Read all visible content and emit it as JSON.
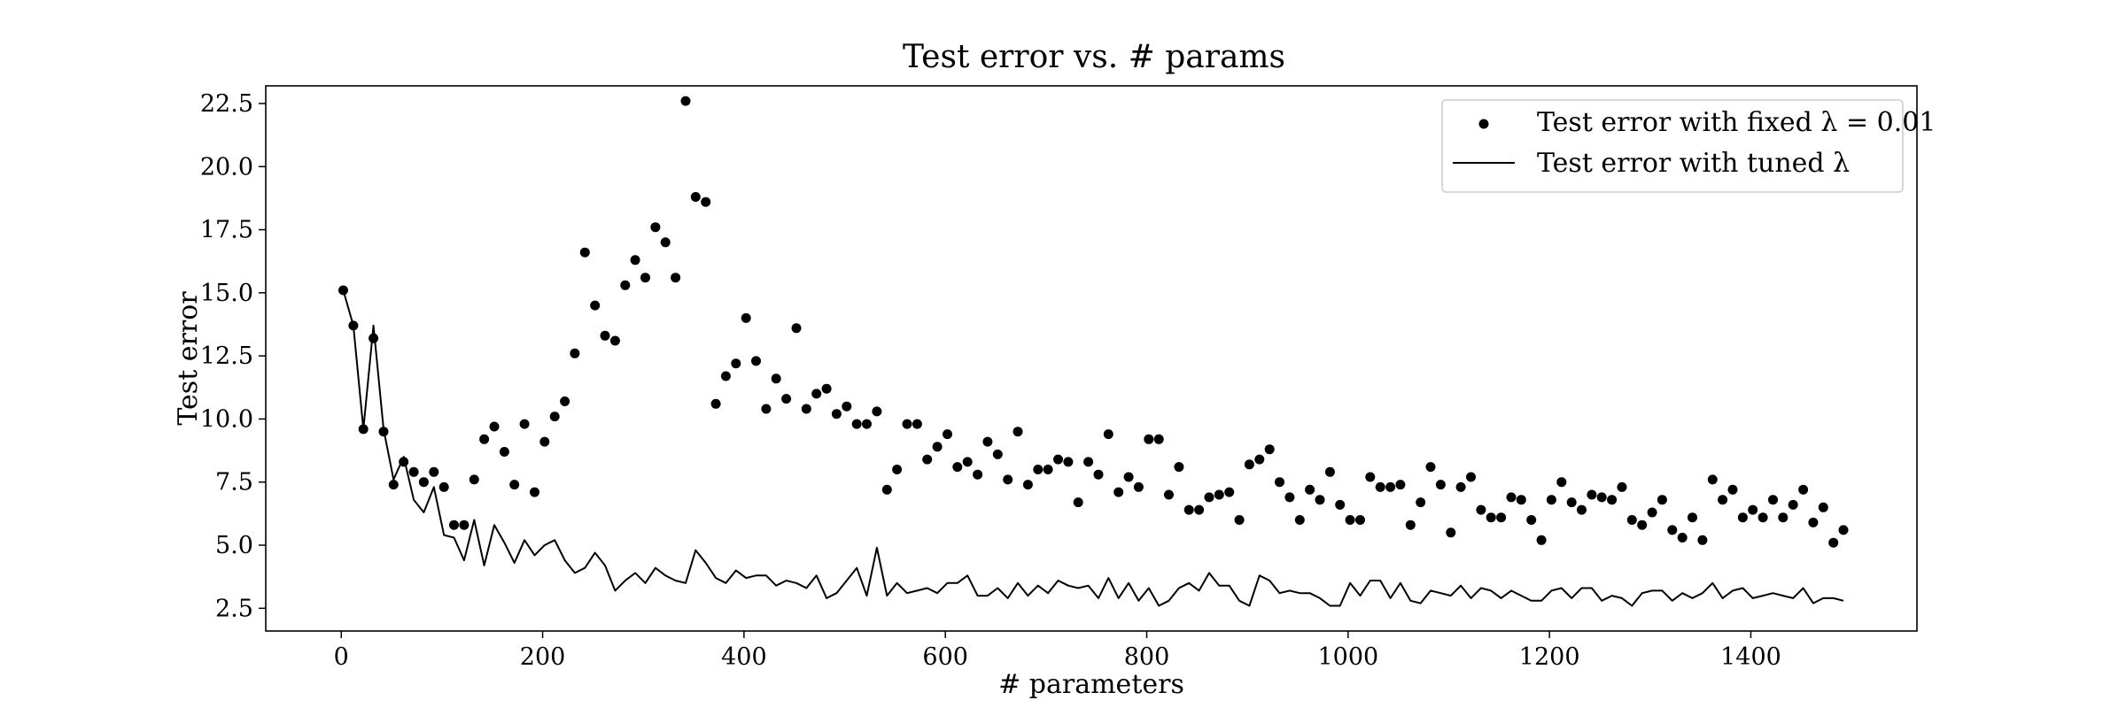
{
  "chart_data": {
    "type": "scatter",
    "title": "Test error vs. # params",
    "xlabel": "# parameters",
    "ylabel": "Test error",
    "xlim": [
      -75,
      1565
    ],
    "ylim": [
      1.6,
      23.2
    ],
    "xticks": [
      0,
      200,
      400,
      600,
      800,
      1000,
      1200,
      1400
    ],
    "xtick_labels": [
      "0",
      "200",
      "400",
      "600",
      "800",
      "1000",
      "1200",
      "1400"
    ],
    "yticks": [
      2.5,
      5.0,
      7.5,
      10.0,
      12.5,
      15.0,
      17.5,
      20.0,
      22.5
    ],
    "ytick_labels": [
      "2.5",
      "5.0",
      "7.5",
      "10.0",
      "12.5",
      "15.0",
      "17.5",
      "20.0",
      "22.5"
    ],
    "grid": false,
    "legend_position": "top-right",
    "x": [
      2,
      12,
      22,
      32,
      42,
      52,
      62,
      72,
      82,
      92,
      102,
      112,
      122,
      132,
      142,
      152,
      162,
      172,
      182,
      192,
      202,
      212,
      222,
      232,
      242,
      252,
      262,
      272,
      282,
      292,
      302,
      312,
      322,
      332,
      342,
      352,
      362,
      372,
      382,
      392,
      402,
      412,
      422,
      432,
      442,
      452,
      462,
      472,
      482,
      492,
      502,
      512,
      522,
      532,
      542,
      552,
      562,
      572,
      582,
      592,
      602,
      612,
      622,
      632,
      642,
      652,
      662,
      672,
      682,
      692,
      702,
      712,
      722,
      732,
      742,
      752,
      762,
      772,
      782,
      792,
      802,
      812,
      822,
      832,
      842,
      852,
      862,
      872,
      882,
      892,
      902,
      912,
      922,
      932,
      942,
      952,
      962,
      972,
      982,
      992,
      1002,
      1012,
      1022,
      1032,
      1042,
      1052,
      1062,
      1072,
      1082,
      1092,
      1102,
      1112,
      1122,
      1132,
      1142,
      1152,
      1162,
      1172,
      1182,
      1192,
      1202,
      1212,
      1222,
      1232,
      1242,
      1252,
      1262,
      1272,
      1282,
      1292,
      1302,
      1312,
      1322,
      1332,
      1342,
      1352,
      1362,
      1372,
      1382,
      1392,
      1402,
      1412,
      1422,
      1432,
      1442,
      1452,
      1462,
      1472,
      1482,
      1492
    ],
    "series": [
      {
        "name": "Test error with fixed λ = 0.01",
        "kind": "scatter",
        "color": "#000000",
        "values": [
          15.1,
          13.7,
          9.6,
          13.2,
          9.5,
          7.4,
          8.3,
          7.9,
          7.5,
          7.9,
          7.3,
          5.8,
          5.8,
          7.6,
          9.2,
          9.7,
          8.7,
          7.4,
          9.8,
          7.1,
          9.1,
          10.1,
          10.7,
          12.6,
          16.6,
          14.5,
          13.3,
          13.1,
          15.3,
          16.3,
          15.6,
          17.6,
          17.0,
          15.6,
          22.6,
          18.8,
          18.6,
          10.6,
          11.7,
          12.2,
          14.0,
          12.3,
          10.4,
          11.6,
          10.8,
          13.6,
          10.4,
          11.0,
          11.2,
          10.2,
          10.5,
          9.8,
          9.8,
          10.3,
          7.2,
          8.0,
          9.8,
          9.8,
          8.4,
          8.9,
          9.4,
          8.1,
          8.3,
          7.8,
          9.1,
          8.6,
          7.6,
          9.5,
          7.4,
          8.0,
          8.0,
          8.4,
          8.3,
          6.7,
          8.3,
          7.8,
          9.4,
          7.1,
          7.7,
          7.3,
          9.2,
          9.2,
          7.0,
          8.1,
          6.4,
          6.4,
          6.9,
          7.0,
          7.1,
          6.0,
          8.2,
          8.4,
          8.8,
          7.5,
          6.9,
          6.0,
          7.2,
          6.8,
          7.9,
          6.6,
          6.0,
          6.0,
          7.7,
          7.3,
          7.3,
          7.4,
          5.8,
          6.7,
          8.1,
          7.4,
          5.5,
          7.3,
          7.7,
          6.4,
          6.1,
          6.1,
          6.9,
          6.8,
          6.0,
          5.2,
          6.8,
          7.5,
          6.7,
          6.4,
          7.0,
          6.9,
          6.8,
          7.3,
          6.0,
          5.8,
          6.3,
          6.8,
          5.6,
          5.3,
          6.1,
          5.2,
          7.6,
          6.8,
          7.2,
          6.1,
          6.4,
          6.1,
          6.8,
          6.1,
          6.6,
          7.2,
          5.9,
          6.5,
          5.1,
          5.6
        ]
      },
      {
        "name": "Test error with tuned λ",
        "kind": "line",
        "color": "#000000",
        "values": [
          15.1,
          13.7,
          9.6,
          13.7,
          9.6,
          7.6,
          8.5,
          6.8,
          6.3,
          7.3,
          5.4,
          5.3,
          4.4,
          6.0,
          4.2,
          5.8,
          5.1,
          4.3,
          5.2,
          4.6,
          5.0,
          5.2,
          4.4,
          3.9,
          4.1,
          4.7,
          4.2,
          3.2,
          3.6,
          3.9,
          3.5,
          4.1,
          3.8,
          3.6,
          3.5,
          4.8,
          4.3,
          3.7,
          3.5,
          4.0,
          3.7,
          3.8,
          3.8,
          3.4,
          3.6,
          3.5,
          3.3,
          3.8,
          2.9,
          3.1,
          3.6,
          4.1,
          3.0,
          4.9,
          3.0,
          3.5,
          3.1,
          3.2,
          3.3,
          3.1,
          3.5,
          3.5,
          3.8,
          3.0,
          3.0,
          3.3,
          2.9,
          3.5,
          3.0,
          3.4,
          3.1,
          3.6,
          3.4,
          3.3,
          3.4,
          2.9,
          3.7,
          2.9,
          3.5,
          2.8,
          3.3,
          2.6,
          2.8,
          3.3,
          3.5,
          3.2,
          3.9,
          3.4,
          3.4,
          2.8,
          2.6,
          3.8,
          3.6,
          3.1,
          3.2,
          3.1,
          3.1,
          2.9,
          2.6,
          2.6,
          3.5,
          3.0,
          3.6,
          3.6,
          2.9,
          3.5,
          2.8,
          2.7,
          3.2,
          3.1,
          3.0,
          3.4,
          2.9,
          3.3,
          3.2,
          2.9,
          3.2,
          3.0,
          2.8,
          2.8,
          3.2,
          3.3,
          2.9,
          3.3,
          3.3,
          2.8,
          3.0,
          2.9,
          2.6,
          3.1,
          3.2,
          3.2,
          2.8,
          3.1,
          2.9,
          3.1,
          3.5,
          2.9,
          3.2,
          3.3,
          2.9,
          3.0,
          3.1,
          3.0,
          2.9,
          3.3,
          2.7,
          2.9,
          2.9,
          2.8
        ]
      }
    ],
    "legend": [
      {
        "label": "Test error with fixed λ = 0.01",
        "marker": "dot"
      },
      {
        "label": "Test error with tuned λ",
        "marker": "line"
      }
    ]
  }
}
